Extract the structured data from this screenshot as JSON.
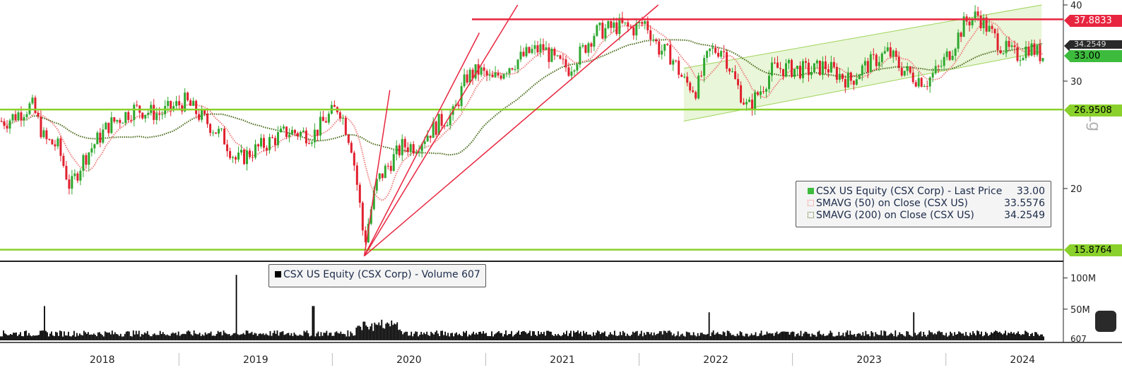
{
  "chart_data": [
    {
      "type": "candlestick",
      "scale": "log",
      "ylim": [
        15,
        40
      ],
      "yticks": [
        "40",
        "30",
        "20"
      ],
      "xticks": [
        "2018",
        "2019",
        "2020",
        "2021",
        "2022",
        "2023",
        "2024"
      ],
      "series": [
        {
          "name": "CSX US Equity (CSX Corp) - Last Price",
          "value": "33.00",
          "color": "#3dbb3d"
        },
        {
          "name": "SMAVG (50)  on Close (CSX US)",
          "value": "33.5576",
          "color": "#f08080"
        },
        {
          "name": "SMAVG (200)  on Close (CSX US)",
          "value": "34.2549",
          "color": "#4a6b1a"
        }
      ],
      "price_path": [
        [
          "2017-11",
          25.8
        ],
        [
          "2018-01",
          27.4
        ],
        [
          "2018-02",
          24.0
        ],
        [
          "2018-03",
          23.5
        ],
        [
          "2018-04",
          20.0
        ],
        [
          "2018-05",
          22.3
        ],
        [
          "2018-07",
          25.4
        ],
        [
          "2018-09",
          27.0
        ],
        [
          "2018-11",
          26.5
        ],
        [
          "2019-01",
          27.8
        ],
        [
          "2019-02",
          26.5
        ],
        [
          "2019-04",
          24.2
        ],
        [
          "2019-05",
          22.2
        ],
        [
          "2019-07",
          23.5
        ],
        [
          "2019-09",
          24.8
        ],
        [
          "2019-11",
          24.5
        ],
        [
          "2019-12",
          26.0
        ],
        [
          "2020-01",
          27.3
        ],
        [
          "2020-02",
          23.5
        ],
        [
          "2020-03",
          16.2
        ],
        [
          "2020-04",
          20.5
        ],
        [
          "2020-06",
          23.5
        ],
        [
          "2020-07",
          23.5
        ],
        [
          "2020-09",
          25.8
        ],
        [
          "2020-10",
          26.5
        ],
        [
          "2020-11",
          30.5
        ],
        [
          "2020-12",
          31.2
        ],
        [
          "2021-01",
          30.0
        ],
        [
          "2021-02",
          31.5
        ],
        [
          "2021-04",
          33.5
        ],
        [
          "2021-05",
          34.0
        ],
        [
          "2021-06",
          32.2
        ],
        [
          "2021-07",
          31.5
        ],
        [
          "2021-08",
          33.5
        ],
        [
          "2021-09",
          36.0
        ],
        [
          "2021-11",
          37.0
        ],
        [
          "2021-12",
          36.5
        ],
        [
          "2022-01",
          37.5
        ],
        [
          "2022-02",
          34.0
        ],
        [
          "2022-03",
          33.0
        ],
        [
          "2022-04",
          30.0
        ],
        [
          "2022-05",
          29.0
        ],
        [
          "2022-06",
          33.5
        ],
        [
          "2022-07",
          34.0
        ],
        [
          "2022-08",
          30.0
        ],
        [
          "2022-09",
          27.0
        ],
        [
          "2022-10",
          29.0
        ],
        [
          "2022-11",
          31.5
        ],
        [
          "2022-12",
          31.5
        ],
        [
          "2023-02",
          31.2
        ],
        [
          "2023-03",
          31.8
        ],
        [
          "2023-05",
          30.0
        ],
        [
          "2023-06",
          31.5
        ],
        [
          "2023-07",
          32.5
        ],
        [
          "2023-08",
          33.5
        ],
        [
          "2023-09",
          31.5
        ],
        [
          "2023-10",
          30.5
        ],
        [
          "2023-11",
          30.0
        ],
        [
          "2023-12",
          31.5
        ],
        [
          "2024-01",
          34.0
        ],
        [
          "2024-02",
          37.5
        ],
        [
          "2024-03",
          38.5
        ],
        [
          "2024-04",
          36.0
        ],
        [
          "2024-05",
          34.0
        ],
        [
          "2024-06",
          33.0
        ],
        [
          "2024-07",
          34.2
        ],
        [
          "2024-08",
          33.0
        ]
      ],
      "price_levels": [
        {
          "label": "37.8833",
          "value": 37.8833,
          "color": "#e8253f"
        },
        {
          "label": "26.9508",
          "value": 26.9508,
          "color": "#8ad12b"
        },
        {
          "label": "15.8764",
          "value": 15.8764,
          "color": "#8ad12b"
        }
      ],
      "last_price_label": "33.00",
      "trend_lines": [
        {
          "from": [
            "2020-03",
            15.5
          ],
          "to": [
            "2020-05",
            29.0
          ]
        },
        {
          "from": [
            "2020-03",
            15.5
          ],
          "to": [
            "2020-12",
            36.0
          ]
        },
        {
          "from": [
            "2020-03",
            15.5
          ],
          "to": [
            "2021-03",
            40.0
          ]
        },
        {
          "from": [
            "2020-03",
            15.5
          ],
          "to": [
            "2022-02",
            40.0
          ]
        }
      ],
      "channel": {
        "lower": [
          [
            "2022-04",
            25.8
          ],
          [
            "2024-08",
            33.5
          ]
        ],
        "upper": [
          [
            "2022-04",
            31.5
          ],
          [
            "2024-08",
            40.0
          ]
        ]
      },
      "yaxis_label": "Lg"
    },
    {
      "type": "bar",
      "name": "CSX US Equity (CSX Corp) - Volume",
      "last_value": "607",
      "yticks": [
        "100M",
        "50M"
      ],
      "spikes": [
        [
          "2018-02",
          55
        ],
        [
          "2019-05",
          105
        ],
        [
          "2019-11",
          55
        ],
        [
          "2020-03",
          30
        ],
        [
          "2022-06",
          45
        ],
        [
          "2023-10",
          45
        ]
      ]
    }
  ],
  "legend_price": {
    "row1": "CSX US Equity (CSX Corp) - Last Price",
    "row1_value": "33.00",
    "row2": "SMAVG (50)  on Close (CSX US)",
    "row2_value": "33.5576",
    "row3": "SMAVG (200)  on Close (CSX US)",
    "row3_value": "34.2549"
  },
  "legend_volume": {
    "row1": "CSX US Equity (CSX Corp) - Volume 607"
  },
  "tags": {
    "red": "37.8833",
    "last": "33.00",
    "green_top": "26.9508",
    "green_bot": "15.8764",
    "sma": "34.2549"
  }
}
